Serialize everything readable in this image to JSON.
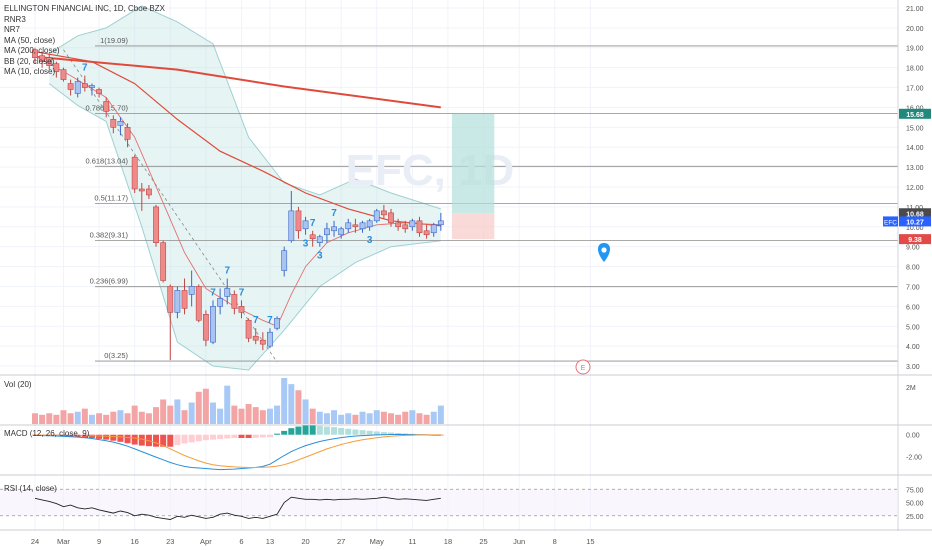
{
  "title": "ELLINGTON FINANCIAL INC, 1D, Cboe BZX",
  "indicators_legend": [
    "RNR3",
    "NR7",
    "MA (50, close)",
    "MA (200, close)",
    "BB (20, close)",
    "MA (10, close)"
  ],
  "watermark": "EFC, 1D",
  "colors": {
    "up": "#a9c4f0",
    "up_border": "#3a66c8",
    "down": "#ef8a8a",
    "down_border": "#c04545",
    "ma200": "#e04a3a",
    "ma50": "#e04a3a",
    "ma10": "#e36f6f",
    "bb": "#b8e0e0",
    "fib": "#8c8c8c",
    "badge_green": "#21897b",
    "badge_red": "#e24a4a",
    "badge_blue": "#2962ff",
    "marker": "#2196f3"
  },
  "chart_data": {
    "type": "candlestick",
    "title": "ELLINGTON FINANCIAL INC, 1D, Cboe BZX",
    "y_axis": {
      "ticks": [
        "21.00",
        "20.00",
        "19.00",
        "18.00",
        "17.00",
        "16.00",
        "15.00",
        "14.00",
        "13.00",
        "12.00",
        "11.00",
        "10.00",
        "9.00",
        "8.00",
        "7.00",
        "6.00",
        "5.00",
        "4.00",
        "3.00"
      ],
      "range": [
        2.6,
        21.4
      ]
    },
    "x_axis": {
      "ticks": [
        {
          "i": 0,
          "label": "24"
        },
        {
          "i": 4,
          "label": "Mar"
        },
        {
          "i": 9,
          "label": "9"
        },
        {
          "i": 14,
          "label": "16"
        },
        {
          "i": 19,
          "label": "23"
        },
        {
          "i": 24,
          "label": "Apr"
        },
        {
          "i": 29,
          "label": "6"
        },
        {
          "i": 33,
          "label": "13"
        },
        {
          "i": 38,
          "label": "20"
        },
        {
          "i": 43,
          "label": "27"
        },
        {
          "i": 48,
          "label": "May"
        },
        {
          "i": 53,
          "label": "11"
        },
        {
          "i": 58,
          "label": "18"
        },
        {
          "i": 63,
          "label": "25"
        },
        {
          "i": 68,
          "label": "Jun"
        },
        {
          "i": 73,
          "label": "8"
        },
        {
          "i": 78,
          "label": "15"
        }
      ]
    },
    "candles": [
      {
        "o": 18.9,
        "h": 19.0,
        "l": 18.2,
        "c": 18.5
      },
      {
        "o": 18.6,
        "h": 18.8,
        "l": 18.0,
        "c": 18.3
      },
      {
        "o": 18.5,
        "h": 18.7,
        "l": 17.9,
        "c": 18.1
      },
      {
        "o": 18.2,
        "h": 18.3,
        "l": 17.5,
        "c": 17.8
      },
      {
        "o": 17.9,
        "h": 18.0,
        "l": 17.3,
        "c": 17.4
      },
      {
        "o": 17.2,
        "h": 17.4,
        "l": 16.6,
        "c": 16.9
      },
      {
        "o": 16.7,
        "h": 17.5,
        "l": 16.5,
        "c": 17.3
      },
      {
        "o": 17.2,
        "h": 17.6,
        "l": 16.8,
        "c": 17.0
      },
      {
        "o": 17.0,
        "h": 17.2,
        "l": 16.6,
        "c": 17.1
      },
      {
        "o": 16.9,
        "h": 17.0,
        "l": 16.5,
        "c": 16.7
      },
      {
        "o": 16.3,
        "h": 16.5,
        "l": 15.5,
        "c": 15.8
      },
      {
        "o": 15.4,
        "h": 15.6,
        "l": 14.7,
        "c": 15.0
      },
      {
        "o": 15.1,
        "h": 15.5,
        "l": 14.6,
        "c": 15.3
      },
      {
        "o": 15.0,
        "h": 15.2,
        "l": 14.0,
        "c": 14.4
      },
      {
        "o": 13.5,
        "h": 13.6,
        "l": 11.7,
        "c": 11.9
      },
      {
        "o": 11.9,
        "h": 12.2,
        "l": 10.8,
        "c": 11.8
      },
      {
        "o": 11.9,
        "h": 12.1,
        "l": 11.4,
        "c": 11.6
      },
      {
        "o": 11.0,
        "h": 11.1,
        "l": 9.0,
        "c": 9.2
      },
      {
        "o": 9.2,
        "h": 9.3,
        "l": 7.2,
        "c": 7.3
      },
      {
        "o": 7.0,
        "h": 7.1,
        "l": 3.3,
        "c": 5.7
      },
      {
        "o": 5.7,
        "h": 7.0,
        "l": 5.4,
        "c": 6.8
      },
      {
        "o": 6.8,
        "h": 7.4,
        "l": 5.6,
        "c": 5.9
      },
      {
        "o": 6.6,
        "h": 7.8,
        "l": 6.0,
        "c": 7.0
      },
      {
        "o": 7.0,
        "h": 7.1,
        "l": 5.2,
        "c": 5.3
      },
      {
        "o": 5.6,
        "h": 5.8,
        "l": 4.0,
        "c": 4.3
      },
      {
        "o": 4.2,
        "h": 6.3,
        "l": 4.1,
        "c": 6.0
      },
      {
        "o": 6.0,
        "h": 6.9,
        "l": 5.6,
        "c": 6.4
      },
      {
        "o": 6.5,
        "h": 7.4,
        "l": 6.1,
        "c": 6.9
      },
      {
        "o": 6.6,
        "h": 6.8,
        "l": 5.6,
        "c": 5.9
      },
      {
        "o": 6.0,
        "h": 6.3,
        "l": 5.4,
        "c": 5.7
      },
      {
        "o": 5.3,
        "h": 5.4,
        "l": 4.2,
        "c": 4.4
      },
      {
        "o": 4.5,
        "h": 4.9,
        "l": 4.1,
        "c": 4.3
      },
      {
        "o": 4.3,
        "h": 4.7,
        "l": 3.8,
        "c": 4.1
      },
      {
        "o": 4.0,
        "h": 4.9,
        "l": 3.9,
        "c": 4.7
      },
      {
        "o": 4.9,
        "h": 5.5,
        "l": 4.8,
        "c": 5.4
      },
      {
        "o": 7.8,
        "h": 9.0,
        "l": 7.5,
        "c": 8.8
      },
      {
        "o": 9.3,
        "h": 11.8,
        "l": 9.2,
        "c": 10.8
      },
      {
        "o": 10.8,
        "h": 11.0,
        "l": 9.4,
        "c": 9.8
      },
      {
        "o": 9.9,
        "h": 10.5,
        "l": 9.6,
        "c": 10.3
      },
      {
        "o": 9.6,
        "h": 9.8,
        "l": 9.0,
        "c": 9.4
      },
      {
        "o": 9.2,
        "h": 9.6,
        "l": 9.0,
        "c": 9.5
      },
      {
        "o": 9.6,
        "h": 10.2,
        "l": 9.2,
        "c": 9.9
      },
      {
        "o": 9.8,
        "h": 10.3,
        "l": 9.5,
        "c": 10.0
      },
      {
        "o": 9.6,
        "h": 10.0,
        "l": 9.4,
        "c": 9.9
      },
      {
        "o": 9.9,
        "h": 10.4,
        "l": 9.7,
        "c": 10.2
      },
      {
        "o": 10.1,
        "h": 10.4,
        "l": 9.7,
        "c": 10.0
      },
      {
        "o": 9.9,
        "h": 10.3,
        "l": 9.7,
        "c": 10.2
      },
      {
        "o": 10.0,
        "h": 10.4,
        "l": 9.8,
        "c": 10.3
      },
      {
        "o": 10.3,
        "h": 10.9,
        "l": 10.2,
        "c": 10.8
      },
      {
        "o": 10.8,
        "h": 11.1,
        "l": 10.4,
        "c": 10.6
      },
      {
        "o": 10.7,
        "h": 10.9,
        "l": 10.0,
        "c": 10.2
      },
      {
        "o": 10.2,
        "h": 10.4,
        "l": 9.8,
        "c": 10.0
      },
      {
        "o": 10.1,
        "h": 10.3,
        "l": 9.7,
        "c": 9.9
      },
      {
        "o": 10.0,
        "h": 10.4,
        "l": 9.8,
        "c": 10.3
      },
      {
        "o": 10.3,
        "h": 10.5,
        "l": 9.5,
        "c": 9.7
      },
      {
        "o": 9.8,
        "h": 10.1,
        "l": 9.4,
        "c": 9.6
      },
      {
        "o": 9.7,
        "h": 10.2,
        "l": 9.5,
        "c": 10.1
      },
      {
        "o": 10.1,
        "h": 10.7,
        "l": 9.8,
        "c": 10.3
      }
    ],
    "ma200": [
      [
        0,
        18.55
      ],
      [
        20,
        17.9
      ],
      [
        35,
        17.05
      ],
      [
        57,
        16.0
      ]
    ],
    "ma50": [
      [
        0,
        18.8
      ],
      [
        8,
        18.3
      ],
      [
        14,
        17.2
      ],
      [
        20,
        15.4
      ],
      [
        26,
        13.8
      ],
      [
        32,
        12.8
      ],
      [
        38,
        11.7
      ],
      [
        44,
        10.9
      ],
      [
        50,
        10.3
      ],
      [
        57,
        10.05
      ]
    ],
    "ma10": [
      [
        0,
        18.6
      ],
      [
        5,
        17.6
      ],
      [
        10,
        16.5
      ],
      [
        14,
        14.5
      ],
      [
        18,
        11.2
      ],
      [
        21,
        8.7
      ],
      [
        24,
        6.9
      ],
      [
        28,
        6.0
      ],
      [
        32,
        5.3
      ],
      [
        34,
        5.0
      ],
      [
        36,
        6.6
      ],
      [
        38,
        8.0
      ],
      [
        41,
        9.2
      ],
      [
        44,
        9.7
      ],
      [
        48,
        10.1
      ],
      [
        52,
        10.2
      ],
      [
        57,
        10.1
      ]
    ],
    "bb_upper": [
      [
        2,
        18.7
      ],
      [
        6,
        19.6
      ],
      [
        10,
        20.0
      ],
      [
        15,
        21.1
      ],
      [
        20,
        20.3
      ],
      [
        25,
        19.2
      ],
      [
        30,
        14.5
      ],
      [
        35,
        12.2
      ],
      [
        40,
        11.6
      ],
      [
        45,
        12.4
      ],
      [
        50,
        11.7
      ],
      [
        57,
        10.9
      ]
    ],
    "bb_lower": [
      [
        2,
        17.2
      ],
      [
        6,
        16.1
      ],
      [
        10,
        15.3
      ],
      [
        15,
        10.0
      ],
      [
        20,
        4.2
      ],
      [
        25,
        3.0
      ],
      [
        30,
        2.8
      ],
      [
        35,
        4.8
      ],
      [
        40,
        7.0
      ],
      [
        45,
        8.2
      ],
      [
        50,
        9.0
      ],
      [
        57,
        9.3
      ]
    ],
    "fib_levels": [
      {
        "label": "1(19.09)",
        "value": 19.09
      },
      {
        "label": "0.786(15.70)",
        "value": 15.7
      },
      {
        "label": "0.618(13.04)",
        "value": 13.04
      },
      {
        "label": "0.5(11.17)",
        "value": 11.17
      },
      {
        "label": "0.382(9.31)",
        "value": 9.31
      },
      {
        "label": "0.236(6.99)",
        "value": 6.99
      },
      {
        "label": "0(3.25)",
        "value": 3.25
      }
    ],
    "trendline": [
      [
        4,
        18.9
      ],
      [
        34,
        3.2
      ]
    ],
    "position": {
      "entry": 10.68,
      "target": 15.68,
      "stop": 9.38,
      "start_i": 58,
      "end_i": 61
    },
    "annotations": [
      {
        "i": 7,
        "text": "7"
      },
      {
        "i": 25,
        "text": "7"
      },
      {
        "i": 27,
        "text": "7"
      },
      {
        "i": 29,
        "text": "7"
      },
      {
        "i": 31,
        "text": "7"
      },
      {
        "i": 33,
        "text": "7"
      },
      {
        "i": 39,
        "text": "7"
      },
      {
        "i": 42,
        "text": "7"
      },
      {
        "i": 38,
        "text": "3"
      },
      {
        "i": 40,
        "text": "3"
      },
      {
        "i": 47,
        "text": "3"
      }
    ],
    "price_badges": [
      {
        "label": "15.68",
        "value": 15.68,
        "color": "green"
      },
      {
        "label": "10.68",
        "value": 10.68,
        "color": "dark"
      },
      {
        "label": "10.27",
        "value": 10.27,
        "color": "blue",
        "prefix": "EFC"
      },
      {
        "label": "9.38",
        "value": 9.38,
        "color": "red"
      }
    ],
    "earnings_marker": {
      "i": 55,
      "text": "E"
    },
    "volume": {
      "label": "Vol (20)",
      "tick": "2M",
      "values": [
        0.7,
        0.6,
        0.7,
        0.6,
        0.9,
        0.7,
        0.8,
        1.0,
        0.6,
        0.7,
        0.6,
        0.8,
        0.9,
        0.7,
        1.2,
        0.8,
        0.7,
        1.1,
        1.6,
        1.2,
        1.6,
        0.9,
        1.4,
        2.1,
        2.3,
        1.4,
        1.0,
        2.5,
        1.2,
        1.0,
        1.3,
        1.1,
        0.9,
        1.0,
        1.2,
        3.0,
        2.6,
        2.2,
        1.6,
        1.0,
        0.8,
        0.7,
        0.9,
        0.6,
        0.7,
        0.6,
        0.8,
        0.7,
        0.9,
        0.8,
        0.7,
        0.6,
        0.8,
        0.9,
        0.7,
        0.6,
        0.8,
        1.2
      ],
      "max": 3.0
    },
    "macd": {
      "label": "MACD (12, 26, close, 9)",
      "ticks": [
        "0.00",
        "-2.00"
      ],
      "range": [
        -3.6,
        0.8
      ],
      "hist": [
        -0.05,
        -0.08,
        -0.1,
        -0.12,
        -0.15,
        -0.2,
        -0.22,
        -0.26,
        -0.3,
        -0.38,
        -0.45,
        -0.55,
        -0.65,
        -0.78,
        -0.9,
        -1.0,
        -1.05,
        -1.1,
        -1.1,
        -1.1,
        -0.95,
        -0.8,
        -0.7,
        -0.6,
        -0.5,
        -0.45,
        -0.4,
        -0.35,
        -0.3,
        -0.3,
        -0.3,
        -0.28,
        -0.25,
        -0.22,
        0.1,
        0.35,
        0.6,
        0.75,
        0.85,
        0.85,
        0.82,
        0.75,
        0.7,
        0.62,
        0.55,
        0.48,
        0.42,
        0.36,
        0.3,
        0.24,
        0.2,
        0.16,
        0.12,
        0.09,
        0.06,
        0.04,
        0.02,
        -0.02
      ],
      "macd": [
        -0.05,
        -0.08,
        -0.1,
        -0.12,
        -0.15,
        -0.18,
        -0.22,
        -0.28,
        -0.35,
        -0.45,
        -0.55,
        -0.68,
        -0.85,
        -1.05,
        -1.3,
        -1.55,
        -1.8,
        -2.05,
        -2.3,
        -2.55,
        -2.75,
        -2.9,
        -3.0,
        -3.05,
        -3.1,
        -3.15,
        -3.2,
        -3.18,
        -3.15,
        -3.1,
        -3.05,
        -3.0,
        -2.9,
        -2.7,
        -2.3,
        -1.9,
        -1.55,
        -1.25,
        -1.0,
        -0.8,
        -0.62,
        -0.48,
        -0.36,
        -0.26,
        -0.18,
        -0.12,
        -0.08,
        -0.05,
        -0.02,
        0.0,
        0.02,
        0.02,
        0.02,
        0.01,
        0.0,
        -0.02,
        -0.04,
        -0.05
      ],
      "signal": [
        -0.02,
        -0.03,
        -0.04,
        -0.05,
        -0.06,
        -0.07,
        -0.08,
        -0.09,
        -0.1,
        -0.12,
        -0.14,
        -0.17,
        -0.2,
        -0.25,
        -0.3,
        -0.4,
        -0.55,
        -0.75,
        -1.0,
        -1.3,
        -1.6,
        -1.9,
        -2.15,
        -2.4,
        -2.6,
        -2.75,
        -2.85,
        -2.9,
        -2.95,
        -2.98,
        -3.0,
        -3.0,
        -2.98,
        -2.95,
        -2.88,
        -2.75,
        -2.55,
        -2.3,
        -2.05,
        -1.8,
        -1.55,
        -1.3,
        -1.1,
        -0.9,
        -0.73,
        -0.58,
        -0.46,
        -0.36,
        -0.28,
        -0.2,
        -0.14,
        -0.1,
        -0.06,
        -0.04,
        -0.02,
        -0.02,
        -0.02,
        -0.02
      ]
    },
    "rsi": {
      "label": "RSI (14, close)",
      "ticks": [
        "75.00",
        "50.00",
        "25.00"
      ],
      "range": [
        0,
        100
      ],
      "values": [
        58,
        55,
        52,
        48,
        42,
        45,
        40,
        38,
        40,
        36,
        33,
        30,
        34,
        31,
        25,
        28,
        26,
        22,
        20,
        18,
        24,
        22,
        26,
        23,
        20,
        22,
        28,
        30,
        26,
        24,
        20,
        22,
        20,
        24,
        28,
        50,
        60,
        58,
        56,
        56,
        55,
        56,
        55,
        56,
        56,
        57,
        56,
        57,
        58,
        60,
        58,
        56,
        57,
        56,
        55,
        54,
        56,
        58
      ]
    },
    "date_labels_note": ""
  }
}
